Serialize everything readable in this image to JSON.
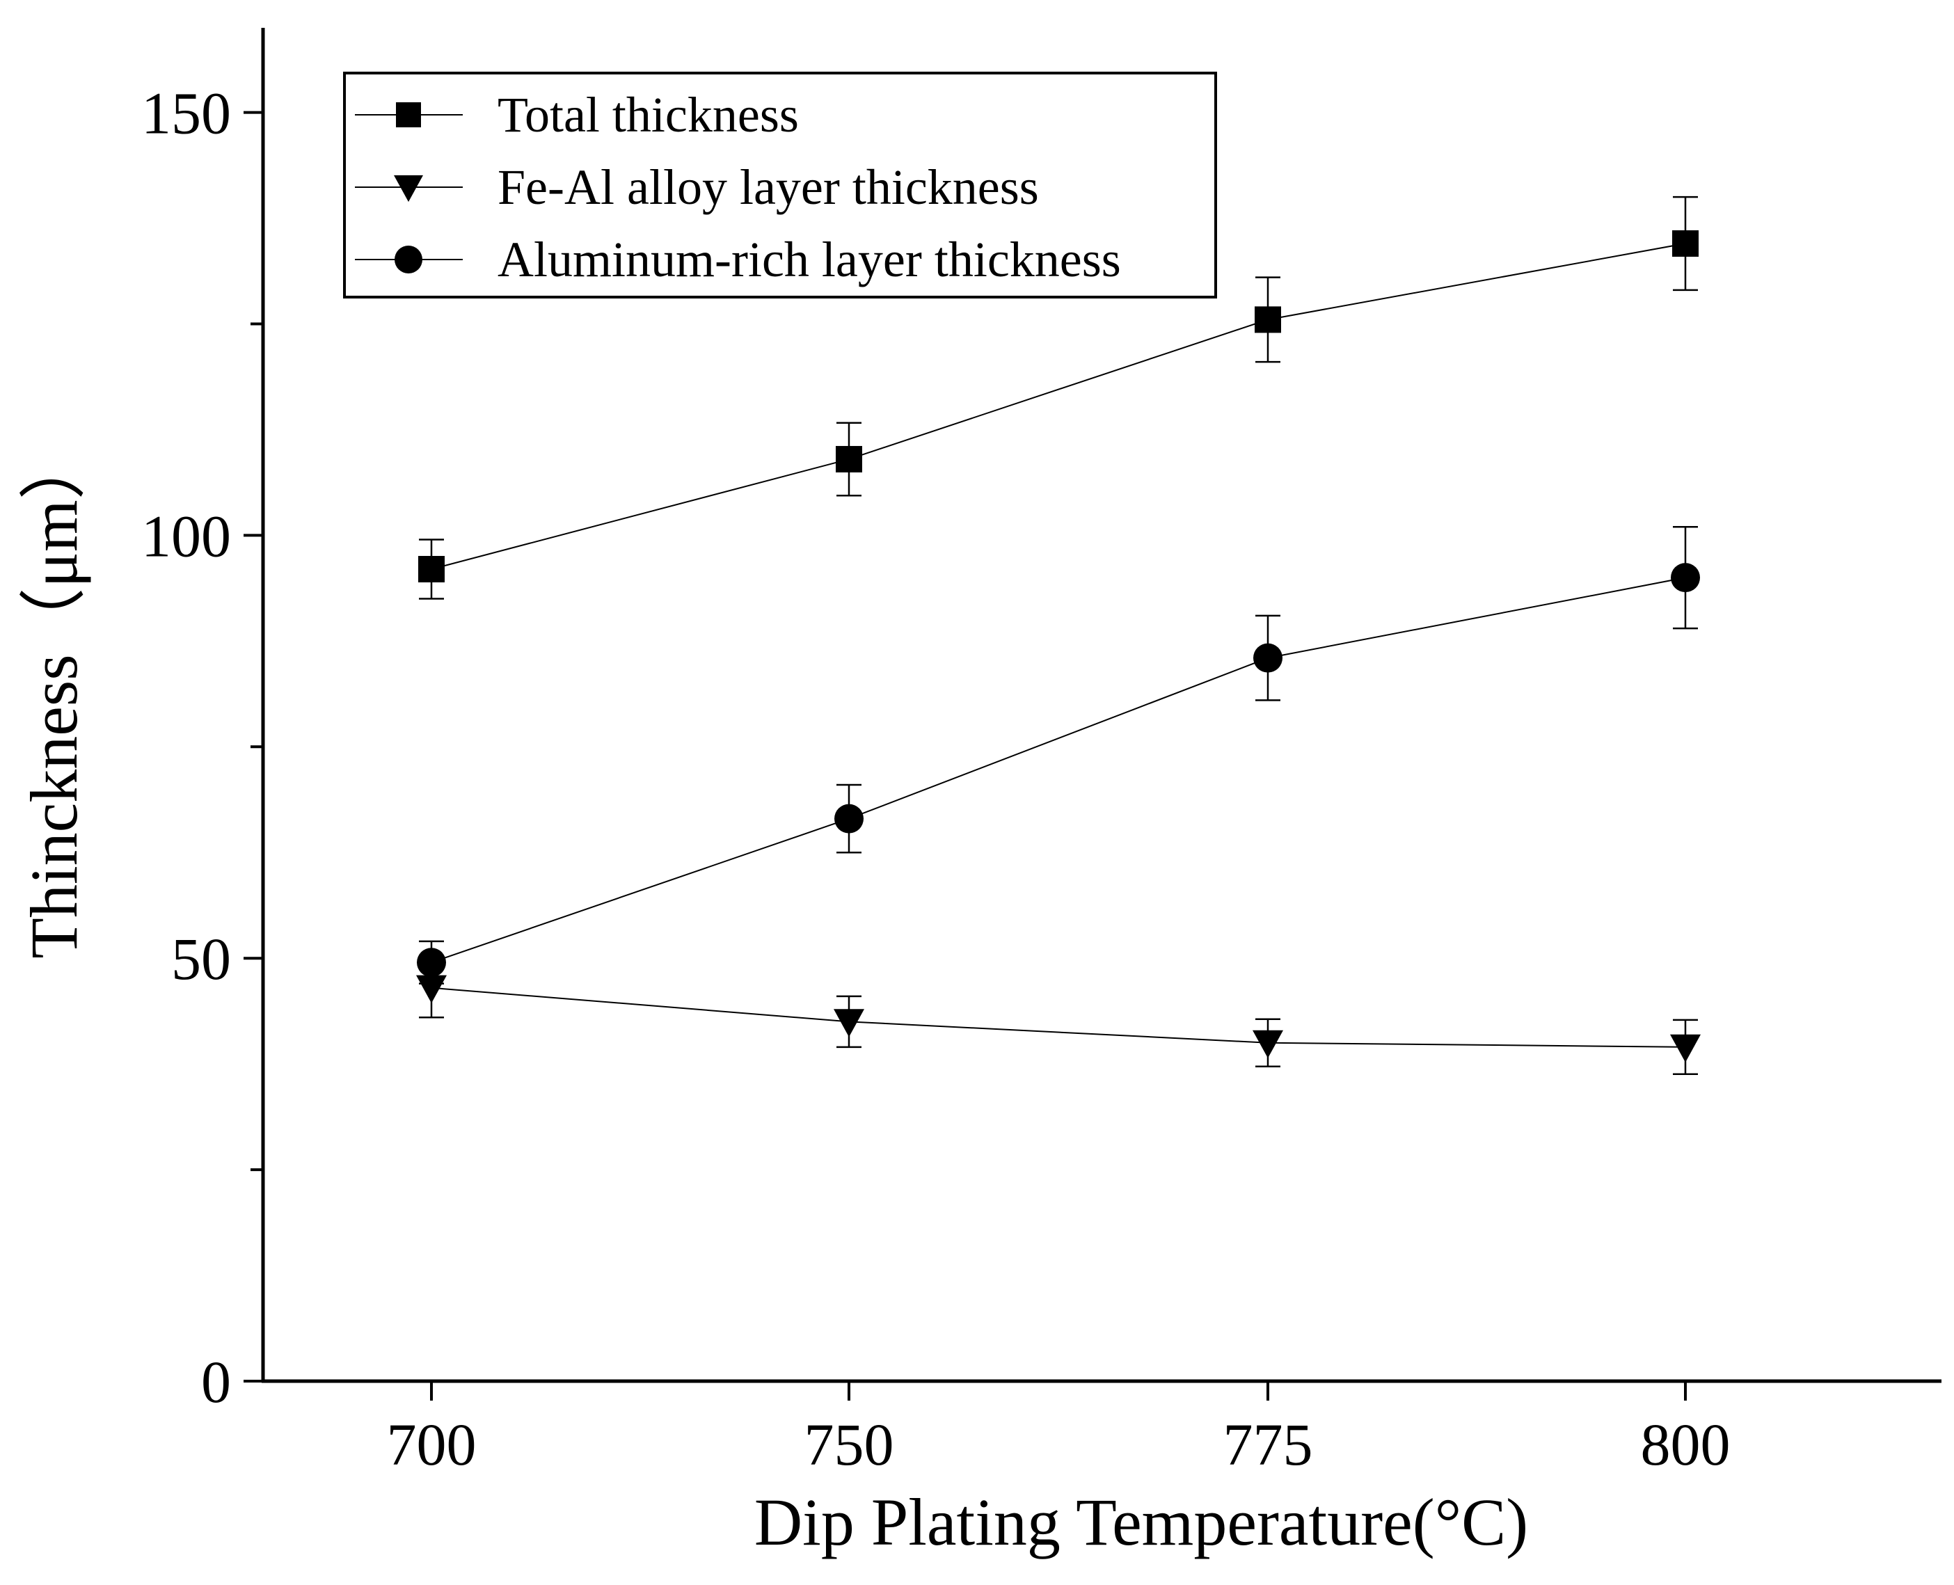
{
  "chart_data": {
    "type": "line",
    "title": "",
    "xlabel": "Dip Plating Temperature(°C)",
    "ylabel": "Thinckness（μm）",
    "ylim": [
      0,
      160
    ],
    "yticks": [
      0,
      50,
      100,
      150
    ],
    "categories": [
      "700",
      "750",
      "775",
      "800"
    ],
    "grid": false,
    "legend_position": "top-left",
    "series": [
      {
        "name": "Total thickness",
        "marker": "square",
        "line_color": "#000000",
        "values": [
          96,
          109,
          125.5,
          134.5
        ],
        "errors": [
          3.5,
          4.3,
          5,
          5.5
        ]
      },
      {
        "name": "Fe-Al alloy layer thickness",
        "marker": "triangle-down",
        "line_color": "#000000",
        "values": [
          46.5,
          42.5,
          40,
          39.5
        ],
        "errors": [
          3.5,
          3,
          2.8,
          3.2
        ]
      },
      {
        "name": "Aluminum-rich layer thickness",
        "marker": "circle",
        "line_color": "#000000",
        "values": [
          49.5,
          66.5,
          85.5,
          95
        ],
        "errors": [
          2.5,
          4,
          5,
          6
        ]
      }
    ]
  }
}
